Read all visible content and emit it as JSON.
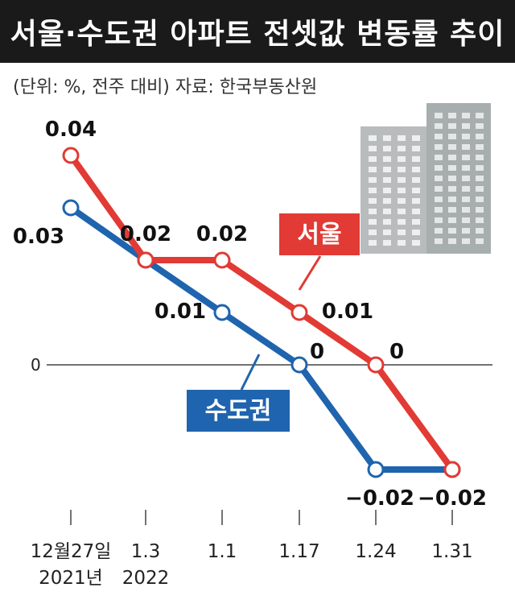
{
  "title": "서울·수도권 아파트 전셋값 변동률 추이",
  "subtitle": "(단위: %, 전주 대비)   자료: 한국부동산원",
  "chart_data": {
    "type": "line",
    "categories": [
      [
        "12월27일",
        "2021년"
      ],
      [
        "1.3",
        "2022"
      ],
      [
        "1.1"
      ],
      [
        "1.17"
      ],
      [
        "1.24"
      ],
      [
        "1.31"
      ]
    ],
    "zero_label": "0",
    "series": [
      {
        "name": "서울",
        "color": "#e23a34",
        "values": [
          0.04,
          0.02,
          0.02,
          0.01,
          0,
          -0.02
        ],
        "labels": [
          "0.04",
          "0.02",
          "0.02",
          "0.01",
          "0",
          "−0.02"
        ]
      },
      {
        "name": "수도권",
        "color": "#1f64ae",
        "values": [
          0.03,
          0.02,
          0.01,
          0,
          -0.02,
          -0.02
        ],
        "labels": [
          "0.03",
          "",
          "0.01",
          "0",
          "",
          "−0.02"
        ]
      }
    ],
    "ylim": [
      -0.02,
      0.04
    ],
    "grid": false,
    "legend": "inline-callouts"
  }
}
